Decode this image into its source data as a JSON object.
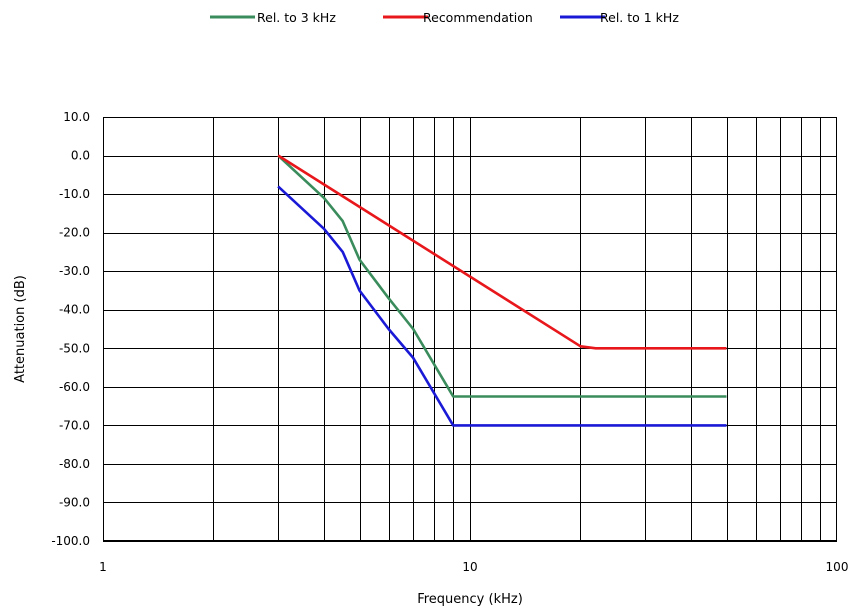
{
  "chart_data": {
    "type": "line",
    "title": "",
    "xlabel": "Frequency (kHz)",
    "ylabel": "Attenuation (dB)",
    "xscale": "log",
    "xlim": [
      1,
      100
    ],
    "ylim": [
      -100,
      10
    ],
    "x_tick_labels": [
      "1",
      "10",
      "100"
    ],
    "y_tick_labels": [
      "10.0",
      "0.0",
      "-10.0",
      "-20.0",
      "-30.0",
      "-40.0",
      "-50.0",
      "-60.0",
      "-70.0",
      "-80.0",
      "-90.0",
      "-100.0"
    ],
    "grid": true,
    "legend_position": "top",
    "series": [
      {
        "name": "Rel. to 3 kHz",
        "color": "#3a8c5c",
        "x": [
          3,
          4,
          4.5,
          5,
          6,
          7,
          9,
          50
        ],
        "y": [
          0,
          -11,
          -17,
          -27,
          -37,
          -45,
          -62.5,
          -62.5
        ]
      },
      {
        "name": "Recommendation",
        "color": "#e8171b",
        "x": [
          3,
          20,
          22,
          50
        ],
        "y": [
          0,
          -49.5,
          -50,
          -50
        ]
      },
      {
        "name": "Rel. to 1 kHz",
        "color": "#1a1ad6",
        "x": [
          3,
          4,
          4.5,
          5,
          6,
          7,
          9,
          50
        ],
        "y": [
          -8,
          -19,
          -25,
          -35,
          -45,
          -52.5,
          -70,
          -70
        ]
      }
    ]
  }
}
